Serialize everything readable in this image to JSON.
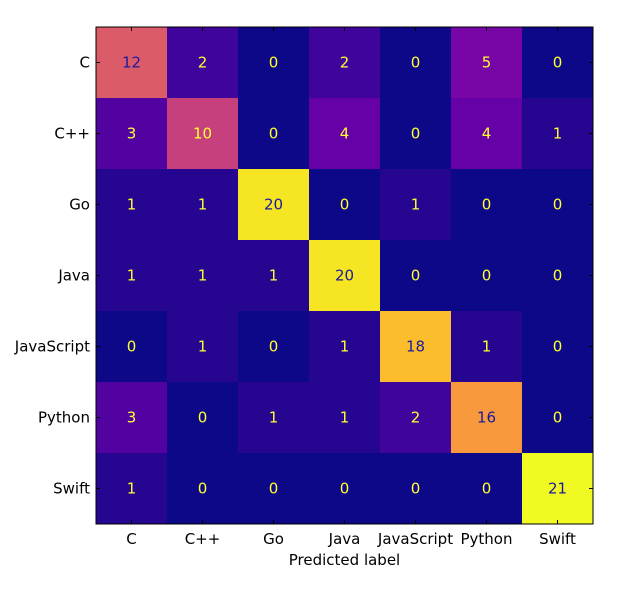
{
  "chart_data": {
    "type": "heatmap",
    "title": "",
    "xlabel": "Predicted label",
    "ylabel": "",
    "x_categories": [
      "C",
      "C++",
      "Go",
      "Java",
      "JavaScript",
      "Python",
      "Swift"
    ],
    "y_categories": [
      "C",
      "C++",
      "Go",
      "Java",
      "JavaScript",
      "Python",
      "Swift"
    ],
    "values": [
      [
        12,
        2,
        0,
        2,
        0,
        5,
        0
      ],
      [
        3,
        10,
        0,
        4,
        0,
        4,
        1
      ],
      [
        1,
        1,
        20,
        0,
        1,
        0,
        0
      ],
      [
        1,
        1,
        1,
        20,
        0,
        0,
        0
      ],
      [
        0,
        1,
        0,
        1,
        18,
        1,
        0
      ],
      [
        3,
        0,
        1,
        1,
        2,
        16,
        0
      ],
      [
        1,
        0,
        0,
        0,
        0,
        0,
        21
      ]
    ],
    "value_range": [
      0,
      21
    ],
    "colormap": "plasma",
    "label_colors": {
      "on_dark": "#ffff33",
      "on_light": "#1a1a9e"
    },
    "grid": false,
    "legend": "none"
  }
}
